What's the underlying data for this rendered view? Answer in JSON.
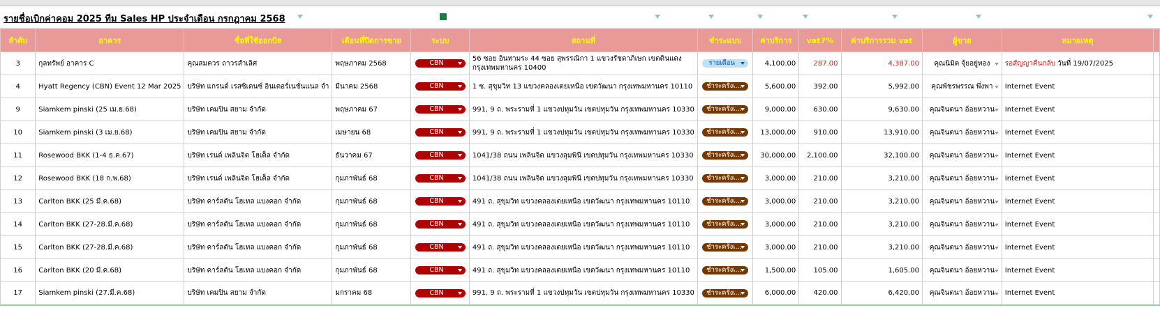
{
  "title": "รายชื่อเบิกค่าคอม 2025 ทีม Sales HP ประจำเดือน กรกฎาคม 2568",
  "table": {
    "headers": [
      "ลำดับ",
      "อาคาร",
      "ชื่อที่ใช้ออกบิล",
      "เดือนที่ปิดการขาย",
      "ระบบ",
      "สถานที่",
      "ชำระแบบ",
      "ค่าบริการ",
      "vat7%",
      "ค่าบริการรวม vat",
      "ผู้ขาย",
      "หมายเหตุ"
    ],
    "rows": [
      {
        "no": "3",
        "building": "กุลทรัพย์ อาคาร C",
        "billing_name": "คุณสมควร ถาวรสำเลิศ",
        "closing_month": "พฤษภาคม 2568",
        "system": "CBN",
        "location": "56 ซอย อินทามระ 44 ซอย สุพรรณิกา 1 แขวงรัชดาภิเษก เขตดินแดง กรุงเทพมหานคร 10400",
        "payment": "รายเดือน",
        "service_fee": "4,100.00",
        "vat": "287.00",
        "total": "4,387.00",
        "seller": "คุณนิมิต จุ้ยอยู่ทอง",
        "remark": [
          "รอสัญญาคืนกลับ",
          "วันที่ 19/07/2025"
        ]
      },
      {
        "no": "4",
        "building": "Hyatt Regency (CBN) Event 12 Mar 2025",
        "billing_name": "บริษัท แกรนด์ เรสซิเดนซ์ อินเตอร์เนชั่นแนล จำ",
        "closing_month": "มีนาคม 2568",
        "system": "CBN",
        "location": "1 ซ. สุขุมวิท 13 แขวงคลองเตยเหนือ เขตวัฒนา กรุงเทพมหานคร 10110",
        "payment": "ชำระครั้งเ...",
        "service_fee": "5,600.00",
        "vat": "392.00",
        "total": "5,992.00",
        "seller": "คุณพัชรพรรณ พึ่งพา",
        "remark": [
          "Internet Event"
        ]
      },
      {
        "no": "9",
        "building": "Siamkem pinski (25 เม.ย.68)",
        "billing_name": "บริษัท เคมปิน สยาม จำกัด",
        "closing_month": "พฤษภาคม 67",
        "system": "CBN",
        "location": "991, 9 ถ. พระรามที่ 1 แขวงปทุมวัน เขตปทุมวัน กรุงเทพมหานคร 10330",
        "payment": "ชำระครั้งเ...",
        "service_fee": "9,000.00",
        "vat": "630.00",
        "total": "9,630.00",
        "seller": "คุณจินตนา อ้อยหวาน",
        "remark": [
          "Internet Event"
        ]
      },
      {
        "no": "10",
        "building": "Siamkem pinski (3 เม.ย.68)",
        "billing_name": "บริษัท เคมปิน สยาม จำกัด",
        "closing_month": "เมษายน 68",
        "system": "CBN",
        "location": "991, 9 ถ. พระรามที่ 1 แขวงปทุมวัน เขตปทุมวัน กรุงเทพมหานคร 10330",
        "payment": "ชำระครั้งเ...",
        "service_fee": "13,000.00",
        "vat": "910.00",
        "total": "13,910.00",
        "seller": "คุณจินตนา อ้อยหวาน",
        "remark": [
          "Internet Event"
        ]
      },
      {
        "no": "11",
        "building": "Rosewood BKK (1-4 ธ.ค.67)",
        "billing_name": "บริษัท เรนด์ เพลินจิต โฮเต็ล จำกัด",
        "closing_month": "ธันวาคม 67",
        "system": "CBN",
        "location": "1041/38 ถนน เพลินจิต แขวงลุมพินี เขตปทุมวัน กรุงเทพมหานคร 10330",
        "payment": "ชำระครั้งเ...",
        "service_fee": "30,000.00",
        "vat": "2,100.00",
        "total": "32,100.00",
        "seller": "คุณจินตนา อ้อยหวาน",
        "remark": [
          "Internet Event"
        ]
      },
      {
        "no": "12",
        "building": "Rosewood BKK (18 ก.พ.68)",
        "billing_name": "บริษัท เรนด์ เพลินจิต โฮเต็ล จำกัด",
        "closing_month": "กุมภาพันธ์ 68",
        "system": "CBN",
        "location": "1041/38 ถนน เพลินจิต แขวงลุมพินี เขตปทุมวัน กรุงเทพมหานคร 10330",
        "payment": "ชำระครั้งเ...",
        "service_fee": "3,000.00",
        "vat": "210.00",
        "total": "3,210.00",
        "seller": "คุณจินตนา อ้อยหวาน",
        "remark": [
          "Internet Event"
        ]
      },
      {
        "no": "13",
        "building": "Carlton BKK (25 มี.ค.68)",
        "billing_name": "บริษัท คาร์ลตัน โฮเทล แบงคอก จำกัด",
        "closing_month": "กุมภาพันธ์ 68",
        "system": "CBN",
        "location": "491 ถ. สุขุมวิท แขวงคลองเตยเหนือ เขตวัฒนา กรุงเทพมหานคร 10110",
        "payment": "ชำระครั้งเ...",
        "service_fee": "3,000.00",
        "vat": "210.00",
        "total": "3,210.00",
        "seller": "คุณจินตนา อ้อยหวาน",
        "remark": [
          "Internet Event"
        ]
      },
      {
        "no": "14",
        "building": "Carlton BKK (27-28.มี.ค.68)",
        "billing_name": "บริษัท คาร์ลตัน โฮเทล แบงคอก จำกัด",
        "closing_month": "กุมภาพันธ์ 68",
        "system": "CBN",
        "location": "491 ถ. สุขุมวิท แขวงคลองเตยเหนือ เขตวัฒนา กรุงเทพมหานคร 10110",
        "payment": "ชำระครั้งเ...",
        "service_fee": "3,000.00",
        "vat": "210.00",
        "total": "3,210.00",
        "seller": "คุณจินตนา อ้อยหวาน",
        "remark": [
          "Internet Event"
        ]
      },
      {
        "no": "15",
        "building": "Carlton BKK (27-28.มี.ค.68)",
        "billing_name": "บริษัท คาร์ลตัน โฮเทล แบงคอก จำกัด",
        "closing_month": "กุมภาพันธ์ 68",
        "system": "CBN",
        "location": "491 ถ. สุขุมวิท แขวงคลองเตยเหนือ เขตวัฒนา กรุงเทพมหานคร 10110",
        "payment": "ชำระครั้งเ...",
        "service_fee": "3,000.00",
        "vat": "210.00",
        "total": "3,210.00",
        "seller": "คุณจินตนา อ้อยหวาน",
        "remark": [
          "Internet Event"
        ]
      },
      {
        "no": "16",
        "building": "Carlton BKK (20 มี.ค.68)",
        "billing_name": "บริษัท คาร์ลตัน โฮเทล แบงคอก จำกัด",
        "closing_month": "กุมภาพันธ์ 68",
        "system": "CBN",
        "location": "491 ถ. สุขุมวิท แขวงคลองเตยเหนือ เขตวัฒนา กรุงเทพมหานคร 10110",
        "payment": "ชำระครั้งเ...",
        "service_fee": "1,500.00",
        "vat": "105.00",
        "total": "1,605.00",
        "seller": "คุณจินตนา อ้อยหวาน",
        "remark": [
          "Internet Event"
        ]
      },
      {
        "no": "17",
        "building": "Siamkem pinski (27.มี.ค.68)",
        "billing_name": "บริษัท เคมปิน สยาม จำกัด",
        "closing_month": "มกราคม 68",
        "system": "CBN",
        "location": "991, 9 ถ. พระรามที่ 1 แขวงปทุมวัน เขตปทุมวัน กรุงเทพมหานคร 10330",
        "payment": "ชำระครั้งเ...",
        "service_fee": "6,000.00",
        "vat": "420.00",
        "total": "6,420.00",
        "seller": "คุณจินตนา อ้อยหวาน",
        "remark": [
          "Internet Event"
        ]
      }
    ]
  }
}
